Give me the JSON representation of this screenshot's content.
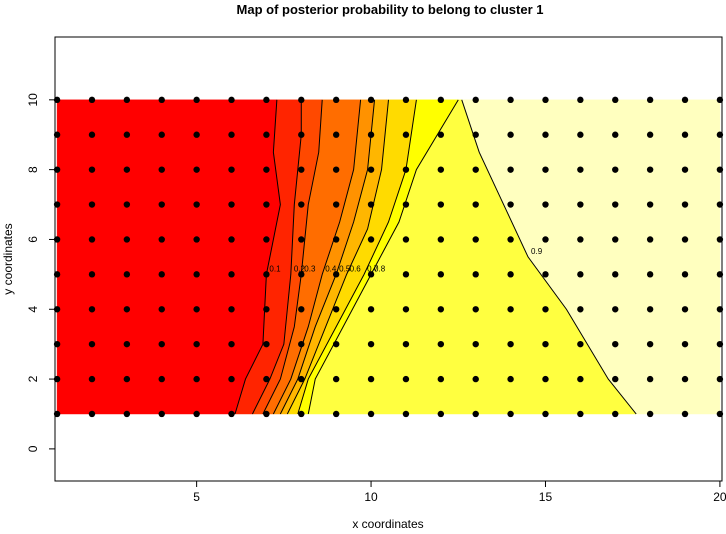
{
  "chart_data": {
    "type": "contour",
    "title": "Map of posterior probability to belong to cluster  1",
    "xlabel": "x coordinates",
    "ylabel": "y coordinates",
    "xlim": [
      0.94,
      20.06
    ],
    "ylim": [
      -0.92,
      11.8
    ],
    "xticks": [
      5,
      10,
      15,
      20
    ],
    "yticks": [
      0,
      2,
      4,
      6,
      8,
      10
    ],
    "grid_x": [
      1,
      2,
      3,
      4,
      5,
      6,
      7,
      8,
      9,
      10,
      11,
      12,
      13,
      14,
      15,
      16,
      17,
      18,
      19,
      20
    ],
    "grid_y": [
      1,
      2,
      3,
      4,
      5,
      6,
      7,
      8,
      9,
      10
    ],
    "colors": [
      "#FF0000",
      "#FF2400",
      "#FF4900",
      "#FF6D00",
      "#FF9200",
      "#FFB600",
      "#FFDB00",
      "#FFFF00",
      "#FFFF40",
      "#FFFFBF"
    ],
    "contours": [
      {
        "level": 0.1,
        "x": [
          6.1,
          6.4,
          6.9,
          7.0,
          7.4,
          7.2,
          7.3
        ],
        "y": [
          1,
          2,
          3,
          5,
          7,
          8.5,
          10
        ]
      },
      {
        "level": 0.2,
        "x": [
          6.6,
          7.1,
          7.5,
          7.7,
          7.8,
          8.0,
          8.0
        ],
        "y": [
          1,
          2,
          3,
          5,
          7,
          9,
          10
        ]
      },
      {
        "level": 0.3,
        "x": [
          6.9,
          7.4,
          7.8,
          8.0,
          8.2,
          8.5,
          8.6
        ],
        "y": [
          1,
          2,
          3.5,
          5,
          7,
          8.5,
          10
        ]
      },
      {
        "level": 0.4,
        "x": [
          7.2,
          7.7,
          8.2,
          8.6,
          9.1,
          9.5,
          9.7
        ],
        "y": [
          1,
          2,
          3.5,
          5,
          6.5,
          8,
          10
        ]
      },
      {
        "level": 0.5,
        "x": [
          7.4,
          7.9,
          8.4,
          9.0,
          9.5,
          9.9,
          10.1
        ],
        "y": [
          1,
          2,
          3.5,
          5,
          6.5,
          8,
          10
        ]
      },
      {
        "level": 0.6,
        "x": [
          7.6,
          8.1,
          8.7,
          9.3,
          9.9,
          10.3,
          10.5
        ],
        "y": [
          1,
          2,
          3.5,
          5,
          6.3,
          8,
          10
        ]
      },
      {
        "level": 0.7,
        "x": [
          7.9,
          8.2,
          9.0,
          9.8,
          10.5,
          11.0,
          11.3
        ],
        "y": [
          1,
          2,
          3.5,
          5,
          6.5,
          8,
          10
        ]
      },
      {
        "level": 0.8,
        "x": [
          8.2,
          8.4,
          9.2,
          10.0,
          10.8,
          11.3,
          12.5
        ],
        "y": [
          1,
          2,
          3.5,
          5,
          6.5,
          8,
          10
        ]
      },
      {
        "level": 0.9,
        "x": [
          17.6,
          16.8,
          15.6,
          14.5,
          13.8,
          13.1,
          12.6
        ],
        "y": [
          1,
          2,
          4,
          5.5,
          7,
          8.5,
          10
        ]
      }
    ]
  }
}
